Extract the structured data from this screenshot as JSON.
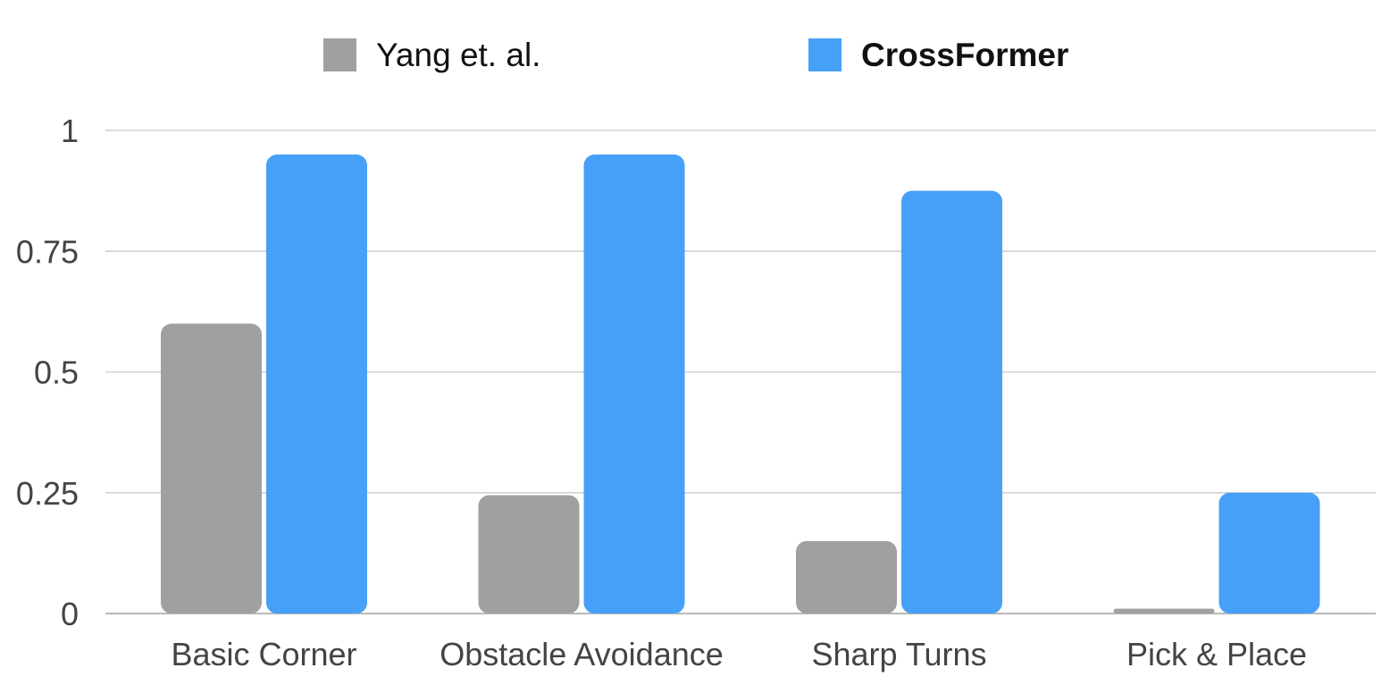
{
  "chart_data": {
    "type": "bar",
    "categories": [
      "Basic Corner",
      "Obstacle Avoidance",
      "Sharp Turns",
      "Pick & Place"
    ],
    "series": [
      {
        "name": "Yang et. al.",
        "values": [
          0.6,
          0.245,
          0.15,
          0.01
        ],
        "color": "#a0a0a0"
      },
      {
        "name": "CrossFormer",
        "values": [
          0.95,
          0.95,
          0.875,
          0.25
        ],
        "color": "#47a0f8"
      }
    ],
    "ylim": [
      0,
      1
    ],
    "yticks": [
      0,
      0.25,
      0.5,
      0.75,
      1
    ],
    "ytick_labels": [
      "0",
      "0.25",
      "0.5",
      "0.75",
      "1"
    ],
    "grid": true,
    "legend_position": "top"
  }
}
